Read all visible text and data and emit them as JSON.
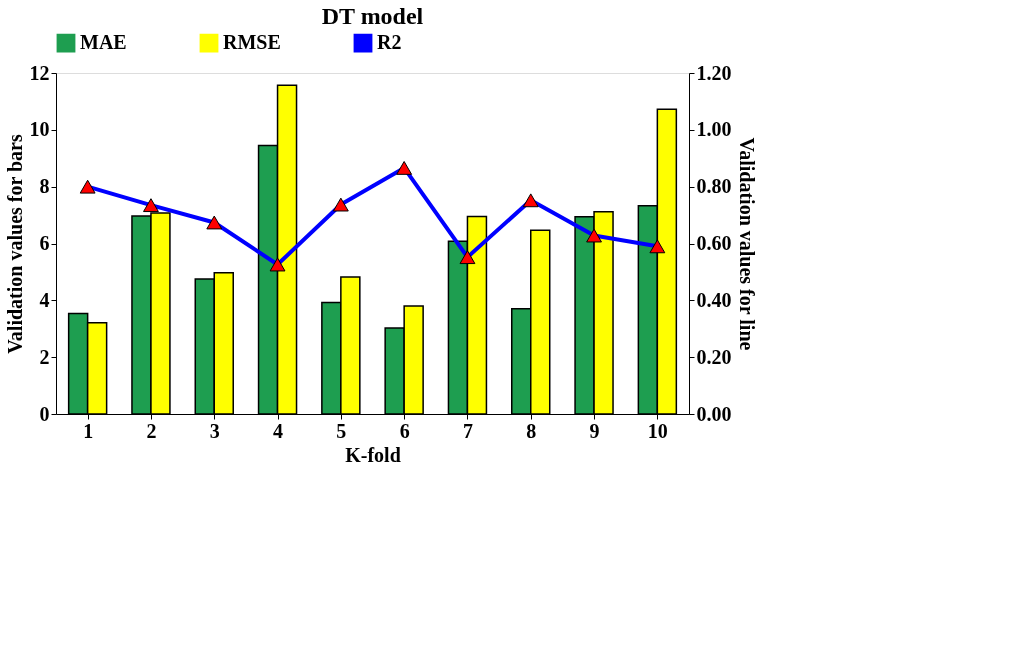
{
  "chart_data": {
    "type": "bar",
    "title": "DT model",
    "xlabel": "K-fold",
    "ylabel": "Validation values for bars",
    "y2label": "Validation values for line",
    "categories": [
      "1",
      "2",
      "3",
      "4",
      "5",
      "6",
      "7",
      "8",
      "9",
      "10"
    ],
    "series": [
      {
        "name": "MAE",
        "color": "#1e9e50",
        "values": [
          3.54,
          6.97,
          4.75,
          9.45,
          3.92,
          3.03,
          6.08,
          3.7,
          6.94,
          7.33
        ]
      },
      {
        "name": "RMSE",
        "color": "#ffff00",
        "values": [
          3.21,
          7.07,
          4.97,
          11.57,
          4.82,
          3.8,
          6.95,
          6.47,
          7.12,
          10.72
        ]
      },
      {
        "name": "R2",
        "type": "line",
        "axis": "y2",
        "color": "#0000ff",
        "marker": "triangle",
        "values": [
          0.8,
          0.735,
          0.674,
          0.526,
          0.737,
          0.866,
          0.552,
          0.752,
          0.628,
          0.59
        ]
      }
    ],
    "ylim": [
      0,
      12
    ],
    "yticks": [
      0,
      2,
      4,
      6,
      8,
      10,
      12
    ],
    "y2lim": [
      0,
      1.2
    ],
    "y2ticks": [
      {
        "value": 0,
        "label": "0.00"
      },
      {
        "value": 0.2,
        "label": "0.20"
      },
      {
        "value": 0.4,
        "label": "0.40"
      },
      {
        "value": 0.6,
        "label": "0.60"
      },
      {
        "value": 0.8,
        "label": "0.80"
      },
      {
        "value": 1.0,
        "label": "1.00"
      },
      {
        "value": 1.2,
        "label": "1.20"
      }
    ],
    "grid": false,
    "legend": "top"
  }
}
